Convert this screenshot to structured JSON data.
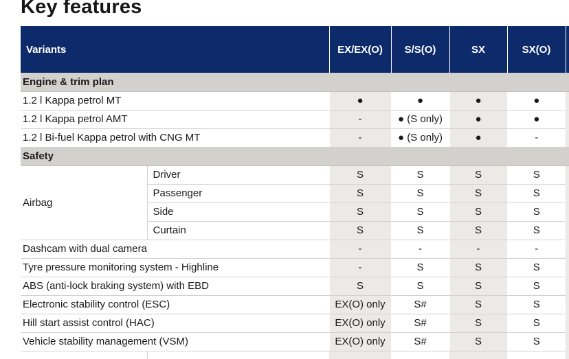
{
  "page": {
    "title": "Key features"
  },
  "table": {
    "header": {
      "variants_label": "Variants",
      "columns": [
        "EX/EX(O)",
        "S/S(O)",
        "SX",
        "SX(O)"
      ]
    },
    "sections": {
      "engine": {
        "label": "Engine & trim plan",
        "rows": [
          {
            "feature": "1.2 l Kappa petrol MT",
            "values": [
              "●",
              "●",
              "●",
              "●"
            ]
          },
          {
            "feature": "1.2 l Kappa petrol AMT",
            "values": [
              "-",
              "● (S only)",
              "●",
              "●"
            ]
          },
          {
            "feature": "1.2 l Bi-fuel Kappa petrol with CNG MT",
            "values": [
              "-",
              "● (S only)",
              "●",
              "-"
            ]
          }
        ]
      },
      "safety": {
        "label": "Safety",
        "airbag": {
          "feature": "Airbag",
          "rows": [
            {
              "sub": "Driver",
              "values": [
                "S",
                "S",
                "S",
                "S"
              ]
            },
            {
              "sub": "Passenger",
              "values": [
                "S",
                "S",
                "S",
                "S"
              ]
            },
            {
              "sub": "Side",
              "values": [
                "S",
                "S",
                "S",
                "S"
              ]
            },
            {
              "sub": "Curtain",
              "values": [
                "S",
                "S",
                "S",
                "S"
              ]
            }
          ]
        },
        "rows": [
          {
            "feature": "Dashcam with dual camera",
            "values": [
              "-",
              "-",
              "-",
              "-"
            ]
          },
          {
            "feature": "Tyre pressure monitoring system - Highline",
            "values": [
              "-",
              "S",
              "S",
              "S"
            ]
          },
          {
            "feature": "ABS (anti-lock braking system) with EBD",
            "values": [
              "S",
              "S",
              "S",
              "S"
            ]
          },
          {
            "feature": "Electronic stability control (ESC)",
            "values": [
              "EX(O) only",
              "S#",
              "S",
              "S"
            ]
          },
          {
            "feature": "Hill start assist control (HAC)",
            "values": [
              "EX(O) only",
              "S#",
              "S",
              "S"
            ]
          },
          {
            "feature": "Vehicle stability management (VSM)",
            "values": [
              "EX(O) only",
              "S#",
              "S",
              "S"
            ]
          }
        ]
      }
    }
  }
}
